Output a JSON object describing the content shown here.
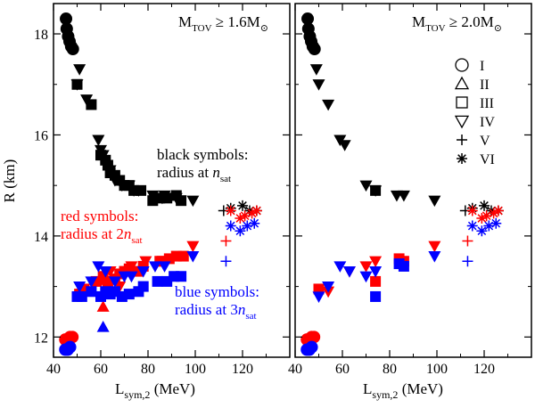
{
  "chart_data": [
    {
      "type": "scatter",
      "panel": "left",
      "title": "M_TOV ≥ 1.6M_⊙",
      "title_parts": {
        "main": "M",
        "sub": "TOV",
        "rel": " ≥ 1.6M",
        "sun": "⊙"
      },
      "xlabel": "L",
      "xlabel_sub": "sym,2",
      "xlabel_unit": " (MeV)",
      "ylabel": "R (km)",
      "xlim": [
        40,
        140
      ],
      "ylim": [
        11.6,
        18.6
      ],
      "xticks": [
        40,
        60,
        80,
        100,
        120
      ],
      "yticks": [
        12,
        14,
        16,
        18
      ],
      "tick_labels_x": [
        "40",
        "60",
        "80",
        "100",
        "120"
      ],
      "tick_labels_y": [
        "12",
        "14",
        "16",
        "18"
      ],
      "annotations": [
        {
          "lines": [
            "black symbols:",
            "radius at n_sat"
          ],
          "color": "#000000"
        },
        {
          "lines": [
            "red symbols:",
            "radius at 2n_sat"
          ],
          "color": "#ff0000"
        },
        {
          "lines": [
            "blue symbols:",
            "radius at 3n_sat"
          ],
          "color": "#0000ff"
        }
      ],
      "annotation_text": {
        "black_1": "black symbols:",
        "black_2a": "radius at ",
        "black_2b": "n",
        "black_2c": "sat",
        "red_1": "red symbols:",
        "red_2a": "radius at 2",
        "red_2b": "n",
        "red_2c": "sat",
        "blue_1": "blue symbols:",
        "blue_2a": "radius at 3",
        "blue_2b": "n",
        "blue_2c": "sat"
      },
      "series": [
        {
          "density": "n_sat",
          "color": "#000000",
          "model": "I",
          "points": [
            [
              45.3,
              18.3
            ],
            [
              45.6,
              18.1
            ],
            [
              46.2,
              17.95
            ],
            [
              46.8,
              17.85
            ],
            [
              47.5,
              17.75
            ],
            [
              48.2,
              17.7
            ]
          ]
        },
        {
          "density": "n_sat",
          "color": "#000000",
          "model": "IV",
          "points": [
            [
              51,
              17.3
            ],
            [
              50,
              17.0
            ],
            [
              54,
              16.7
            ],
            [
              59,
              15.9
            ],
            [
              60,
              15.7
            ],
            [
              61,
              15.6
            ],
            [
              64,
              15.3
            ],
            [
              66,
              15.1
            ],
            [
              69,
              15.0
            ],
            [
              72,
              15.0
            ],
            [
              74,
              14.9
            ],
            [
              76,
              14.9
            ],
            [
              82,
              14.8
            ],
            [
              86,
              14.75
            ],
            [
              87,
              14.8
            ],
            [
              92,
              14.75
            ],
            [
              99,
              14.7
            ]
          ]
        },
        {
          "density": "n_sat",
          "color": "#000000",
          "model": "III",
          "points": [
            [
              50,
              17.0
            ],
            [
              56,
              16.6
            ],
            [
              60,
              15.6
            ],
            [
              62,
              15.5
            ],
            [
              63,
              15.4
            ],
            [
              64,
              15.25
            ],
            [
              66,
              15.2
            ],
            [
              68,
              15.1
            ],
            [
              70,
              15.0
            ],
            [
              72,
              15.0
            ],
            [
              74,
              14.9
            ],
            [
              77,
              14.9
            ],
            [
              82,
              14.7
            ],
            [
              85,
              14.75
            ],
            [
              88,
              14.75
            ],
            [
              92,
              14.8
            ],
            [
              94,
              14.7
            ]
          ]
        },
        {
          "density": "n_sat",
          "color": "#000000",
          "model": "V",
          "points": [
            [
              112,
              14.5
            ]
          ]
        },
        {
          "density": "n_sat",
          "color": "#000000",
          "model": "VI",
          "points": [
            [
              115,
              14.55
            ],
            [
              120,
              14.6
            ],
            [
              123,
              14.5
            ],
            [
              126,
              14.5
            ]
          ]
        },
        {
          "density": "2n_sat",
          "color": "#ff0000",
          "model": "I",
          "points": [
            [
              45,
              11.95
            ],
            [
              46,
              11.95
            ],
            [
              47,
              12.0
            ],
            [
              48,
              12.0
            ]
          ]
        },
        {
          "density": "2n_sat",
          "color": "#ff0000",
          "model": "III",
          "points": [
            [
              51,
              12.85
            ],
            [
              53,
              12.95
            ],
            [
              58,
              13.1
            ],
            [
              61,
              13.2
            ],
            [
              63,
              13.1
            ],
            [
              66,
              13.15
            ],
            [
              68,
              13.25
            ],
            [
              70,
              13.3
            ],
            [
              72,
              13.35
            ],
            [
              76,
              13.3
            ],
            [
              78,
              13.4
            ],
            [
              85,
              13.5
            ],
            [
              86,
              13.5
            ],
            [
              89,
              13.55
            ],
            [
              92,
              13.6
            ],
            [
              95,
              13.6
            ]
          ]
        },
        {
          "density": "2n_sat",
          "color": "#ff0000",
          "model": "IV",
          "points": [
            [
              60,
              13.1
            ],
            [
              64,
              13.3
            ],
            [
              68,
              13.0
            ],
            [
              73,
              13.4
            ],
            [
              79,
              13.5
            ],
            [
              99,
              13.8
            ]
          ]
        },
        {
          "density": "2n_sat",
          "color": "#ff0000",
          "model": "II",
          "points": [
            [
              61,
              12.6
            ]
          ]
        },
        {
          "density": "2n_sat",
          "color": "#ff0000",
          "model": "V",
          "points": [
            [
              113,
              13.9
            ]
          ]
        },
        {
          "density": "2n_sat",
          "color": "#ff0000",
          "model": "VI",
          "points": [
            [
              115,
              14.5
            ],
            [
              119,
              14.35
            ],
            [
              121,
              14.4
            ],
            [
              124,
              14.45
            ],
            [
              126,
              14.5
            ]
          ]
        },
        {
          "density": "3n_sat",
          "color": "#0000ff",
          "model": "I",
          "points": [
            [
              45,
              11.75
            ],
            [
              46,
              11.75
            ],
            [
              47,
              11.8
            ]
          ]
        },
        {
          "density": "3n_sat",
          "color": "#0000ff",
          "model": "III",
          "points": [
            [
              50,
              12.8
            ],
            [
              52,
              12.8
            ],
            [
              56,
              12.9
            ],
            [
              60,
              12.8
            ],
            [
              62,
              12.9
            ],
            [
              64,
              12.85
            ],
            [
              66,
              12.9
            ],
            [
              69,
              12.8
            ],
            [
              72,
              12.85
            ],
            [
              76,
              12.9
            ],
            [
              78,
              13.0
            ],
            [
              84,
              13.1
            ],
            [
              88,
              13.1
            ],
            [
              91,
              13.2
            ],
            [
              94,
              13.2
            ]
          ]
        },
        {
          "density": "3n_sat",
          "color": "#0000ff",
          "model": "IV",
          "points": [
            [
              51,
              13.0
            ],
            [
              56,
              13.1
            ],
            [
              59,
              13.4
            ],
            [
              62,
              13.3
            ],
            [
              66,
              13.1
            ],
            [
              70,
              13.2
            ],
            [
              73,
              13.2
            ],
            [
              78,
              13.3
            ],
            [
              83,
              13.4
            ],
            [
              87,
              13.4
            ],
            [
              99,
              13.6
            ]
          ]
        },
        {
          "density": "3n_sat",
          "color": "#0000ff",
          "model": "II",
          "points": [
            [
              61,
              12.2
            ]
          ]
        },
        {
          "density": "3n_sat",
          "color": "#0000ff",
          "model": "V",
          "points": [
            [
              113,
              13.5
            ]
          ]
        },
        {
          "density": "3n_sat",
          "color": "#0000ff",
          "model": "VI",
          "points": [
            [
              115,
              14.2
            ],
            [
              119,
              14.1
            ],
            [
              122,
              14.2
            ],
            [
              125,
              14.25
            ]
          ]
        }
      ]
    },
    {
      "type": "scatter",
      "panel": "right",
      "title": "M_TOV ≥ 2.0M_⊙",
      "title_parts": {
        "main": "M",
        "sub": "TOV",
        "rel": " ≥ 2.0M",
        "sun": "⊙"
      },
      "xlabel": "L",
      "xlabel_sub": "sym,2",
      "xlabel_unit": " (MeV)",
      "xlim": [
        40,
        140
      ],
      "ylim": [
        11.6,
        18.6
      ],
      "xticks": [
        40,
        60,
        80,
        100,
        120
      ],
      "tick_labels_x": [
        "40",
        "60",
        "80",
        "100",
        "120"
      ],
      "legend": {
        "position": "right",
        "entries": [
          {
            "label": "I",
            "marker": "circle"
          },
          {
            "label": "II",
            "marker": "triangle-up"
          },
          {
            "label": "III",
            "marker": "square"
          },
          {
            "label": "IV",
            "marker": "triangle-down"
          },
          {
            "label": "V",
            "marker": "plus"
          },
          {
            "label": "VI",
            "marker": "asterisk"
          }
        ]
      },
      "series": [
        {
          "density": "n_sat",
          "color": "#000000",
          "model": "I",
          "points": [
            [
              45.3,
              18.3
            ],
            [
              45.6,
              18.1
            ],
            [
              46.2,
              17.95
            ],
            [
              46.8,
              17.85
            ],
            [
              47.5,
              17.75
            ],
            [
              48.2,
              17.7
            ]
          ]
        },
        {
          "density": "n_sat",
          "color": "#000000",
          "model": "IV",
          "points": [
            [
              49,
              17.3
            ],
            [
              50,
              17.0
            ],
            [
              54,
              16.6
            ],
            [
              59,
              15.9
            ],
            [
              61,
              15.8
            ],
            [
              70,
              15.0
            ],
            [
              74,
              14.9
            ],
            [
              83,
              14.8
            ],
            [
              86,
              14.8
            ],
            [
              99,
              14.7
            ]
          ]
        },
        {
          "density": "n_sat",
          "color": "#000000",
          "model": "III",
          "points": [
            [
              74,
              14.9
            ]
          ]
        },
        {
          "density": "n_sat",
          "color": "#000000",
          "model": "V",
          "points": [
            [
              112,
              14.5
            ]
          ]
        },
        {
          "density": "n_sat",
          "color": "#000000",
          "model": "VI",
          "points": [
            [
              115,
              14.55
            ],
            [
              120,
              14.6
            ],
            [
              123,
              14.5
            ],
            [
              126,
              14.5
            ]
          ]
        },
        {
          "density": "2n_sat",
          "color": "#ff0000",
          "model": "I",
          "points": [
            [
              45,
              11.95
            ],
            [
              46,
              11.95
            ],
            [
              47,
              12.0
            ],
            [
              48,
              12.0
            ]
          ]
        },
        {
          "density": "2n_sat",
          "color": "#ff0000",
          "model": "III",
          "points": [
            [
              50,
              12.95
            ],
            [
              74,
              13.1
            ],
            [
              84,
              13.55
            ],
            [
              86,
              13.5
            ]
          ]
        },
        {
          "density": "2n_sat",
          "color": "#ff0000",
          "model": "IV",
          "points": [
            [
              54,
              12.9
            ],
            [
              63,
              13.3
            ],
            [
              70,
              13.4
            ],
            [
              74,
              13.5
            ],
            [
              99,
              13.8
            ]
          ]
        },
        {
          "density": "2n_sat",
          "color": "#ff0000",
          "model": "V",
          "points": [
            [
              113,
              13.9
            ]
          ]
        },
        {
          "density": "2n_sat",
          "color": "#ff0000",
          "model": "VI",
          "points": [
            [
              115,
              14.5
            ],
            [
              119,
              14.35
            ],
            [
              121,
              14.4
            ],
            [
              124,
              14.45
            ],
            [
              126,
              14.5
            ]
          ]
        },
        {
          "density": "3n_sat",
          "color": "#0000ff",
          "model": "I",
          "points": [
            [
              45,
              11.75
            ],
            [
              46,
              11.75
            ],
            [
              47,
              11.8
            ]
          ]
        },
        {
          "density": "3n_sat",
          "color": "#0000ff",
          "model": "III",
          "points": [
            [
              74,
              12.8
            ],
            [
              84,
              13.45
            ],
            [
              86,
              13.4
            ]
          ]
        },
        {
          "density": "3n_sat",
          "color": "#0000ff",
          "model": "IV",
          "points": [
            [
              50,
              12.8
            ],
            [
              54,
              13.0
            ],
            [
              59,
              13.4
            ],
            [
              63,
              13.3
            ],
            [
              70,
              13.2
            ],
            [
              74,
              13.3
            ],
            [
              99,
              13.6
            ]
          ]
        },
        {
          "density": "3n_sat",
          "color": "#0000ff",
          "model": "V",
          "points": [
            [
              113,
              13.5
            ]
          ]
        },
        {
          "density": "3n_sat",
          "color": "#0000ff",
          "model": "VI",
          "points": [
            [
              115,
              14.2
            ],
            [
              119,
              14.1
            ],
            [
              122,
              14.2
            ],
            [
              125,
              14.25
            ]
          ]
        }
      ]
    }
  ]
}
